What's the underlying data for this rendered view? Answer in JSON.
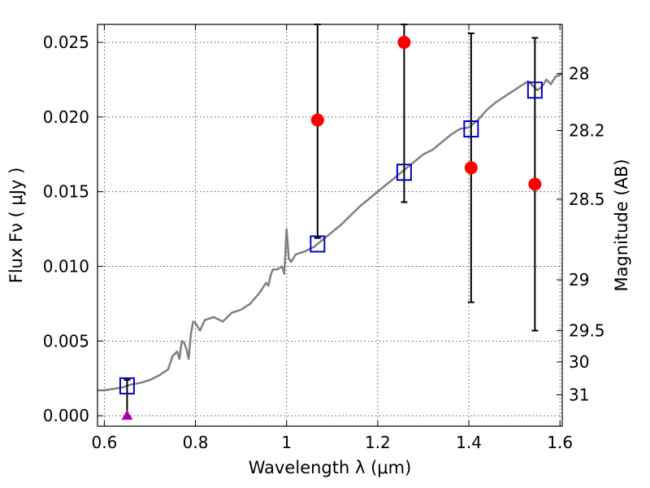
{
  "chart_data": {
    "type": "scatter",
    "xlabel": "Wavelength  λ (μm)",
    "ylabel": "Flux  Fν  ( μJy )",
    "ylabel_right": "Magnitude (AB)",
    "xlim": [
      0.585,
      1.605
    ],
    "ylim": [
      -0.0007,
      0.0262
    ],
    "grid": true,
    "x_ticks": [
      0.6,
      0.8,
      1.0,
      1.2,
      1.4,
      1.6
    ],
    "x_tick_labels": [
      "0.6",
      "0.8",
      "1",
      "1.2",
      "1.4",
      "1.6"
    ],
    "y_ticks": [
      0.0,
      0.005,
      0.01,
      0.015,
      0.02,
      0.025
    ],
    "y_tick_labels": [
      "0.000",
      "0.005",
      "0.010",
      "0.015",
      "0.020",
      "0.025"
    ],
    "right_axis_ticks": [
      {
        "label": "28",
        "flux": 0.0229
      },
      {
        "label": "28.2",
        "flux": 0.0191
      },
      {
        "label": "28.5",
        "flux": 0.0145
      },
      {
        "label": "29",
        "flux": 0.0091
      },
      {
        "label": "29.5",
        "flux": 0.0057
      },
      {
        "label": "30",
        "flux": 0.0036
      },
      {
        "label": "31",
        "flux": 0.0014
      }
    ],
    "colors": {
      "model": "#808080",
      "observed": "#ff0000",
      "model_photometry": "#0000cc",
      "upper_limit": "#aa00aa",
      "errorbar": "#000000"
    },
    "series": [
      {
        "type": "line",
        "points": [
          [
            0.585,
            0.0017
          ],
          [
            0.6,
            0.0017
          ],
          [
            0.62,
            0.0018
          ],
          [
            0.64,
            0.0019
          ],
          [
            0.66,
            0.0021
          ],
          [
            0.68,
            0.0022
          ],
          [
            0.7,
            0.0024
          ],
          [
            0.72,
            0.0027
          ],
          [
            0.74,
            0.0031
          ],
          [
            0.75,
            0.004
          ],
          [
            0.76,
            0.0043
          ],
          [
            0.765,
            0.0038
          ],
          [
            0.77,
            0.005
          ],
          [
            0.775,
            0.0049
          ],
          [
            0.78,
            0.0045
          ],
          [
            0.785,
            0.0038
          ],
          [
            0.79,
            0.0055
          ],
          [
            0.795,
            0.0063
          ],
          [
            0.8,
            0.0062
          ],
          [
            0.81,
            0.0057
          ],
          [
            0.82,
            0.0064
          ],
          [
            0.84,
            0.0066
          ],
          [
            0.86,
            0.0063
          ],
          [
            0.88,
            0.0069
          ],
          [
            0.9,
            0.0071
          ],
          [
            0.92,
            0.0075
          ],
          [
            0.94,
            0.0082
          ],
          [
            0.955,
            0.0089
          ],
          [
            0.96,
            0.0087
          ],
          [
            0.965,
            0.0094
          ],
          [
            0.97,
            0.0098
          ],
          [
            0.98,
            0.0098
          ],
          [
            0.99,
            0.01
          ],
          [
            0.995,
            0.0095
          ],
          [
            1.0,
            0.0125
          ],
          [
            1.005,
            0.0105
          ],
          [
            1.01,
            0.0103
          ],
          [
            1.02,
            0.0108
          ],
          [
            1.04,
            0.011
          ],
          [
            1.06,
            0.0113
          ],
          [
            1.08,
            0.0118
          ],
          [
            1.1,
            0.0123
          ],
          [
            1.12,
            0.0128
          ],
          [
            1.14,
            0.0134
          ],
          [
            1.16,
            0.014
          ],
          [
            1.18,
            0.0145
          ],
          [
            1.2,
            0.015
          ],
          [
            1.22,
            0.0155
          ],
          [
            1.24,
            0.016
          ],
          [
            1.26,
            0.0165
          ],
          [
            1.28,
            0.017
          ],
          [
            1.3,
            0.0175
          ],
          [
            1.32,
            0.0178
          ],
          [
            1.34,
            0.0183
          ],
          [
            1.36,
            0.0188
          ],
          [
            1.38,
            0.0192
          ],
          [
            1.4,
            0.0193
          ],
          [
            1.42,
            0.0198
          ],
          [
            1.44,
            0.0205
          ],
          [
            1.46,
            0.021
          ],
          [
            1.48,
            0.0214
          ],
          [
            1.5,
            0.0218
          ],
          [
            1.52,
            0.0222
          ],
          [
            1.53,
            0.0224
          ],
          [
            1.54,
            0.0221
          ],
          [
            1.55,
            0.0218
          ],
          [
            1.56,
            0.022
          ],
          [
            1.57,
            0.0225
          ],
          [
            1.58,
            0.0222
          ],
          [
            1.59,
            0.0227
          ],
          [
            1.605,
            0.0229
          ]
        ]
      },
      {
        "type": "scatter",
        "points": [
          {
            "x": 1.068,
            "y": 0.0198,
            "yerr": [
              0.0119,
              0.0262
            ]
          },
          {
            "x": 1.258,
            "y": 0.025,
            "yerr": [
              0.0143,
              0.0262
            ]
          },
          {
            "x": 1.405,
            "y": 0.0166,
            "yerr": [
              0.0076,
              0.0256
            ]
          },
          {
            "x": 1.545,
            "y": 0.0155,
            "yerr": [
              0.0057,
              0.0253
            ]
          }
        ]
      },
      {
        "type": "scatter",
        "points": [
          {
            "x": 0.65,
            "y": 0.002
          },
          {
            "x": 1.068,
            "y": 0.0115
          },
          {
            "x": 1.258,
            "y": 0.0163
          },
          {
            "x": 1.405,
            "y": 0.0192
          },
          {
            "x": 1.545,
            "y": 0.0218
          }
        ]
      },
      {
        "type": "upper_limit",
        "points": [
          {
            "x": 0.65,
            "y": 0.0,
            "yerr": [
              0.0,
              0.0024
            ]
          }
        ]
      }
    ]
  }
}
